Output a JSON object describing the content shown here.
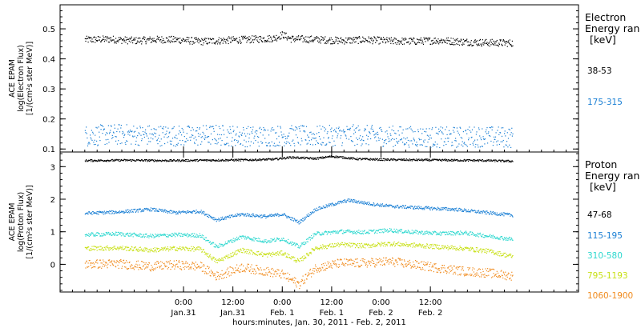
{
  "chart_data": [
    {
      "type": "scatter",
      "panel": "electron",
      "ylabel_lines": [
        "ACE EPAM",
        "log(Electron Flux)",
        "[1/(cm²s ster MeV)]"
      ],
      "ylim": [
        0.09,
        0.58
      ],
      "yticks": [
        0.1,
        0.2,
        0.3,
        0.4,
        0.5
      ],
      "ytick_labels": [
        "0.1",
        "0.2",
        "0.3",
        "0.4",
        "0.5"
      ],
      "legend_title": [
        "Electron",
        "Energy ran",
        "[keV]"
      ],
      "series": [
        {
          "name": "38-53",
          "color": "#000000",
          "points": [
            [
              0,
              0.465
            ],
            [
              6,
              0.467
            ],
            [
              12,
              0.462
            ],
            [
              18,
              0.466
            ],
            [
              24,
              0.464
            ],
            [
              28,
              0.459
            ],
            [
              34,
              0.463
            ],
            [
              40,
              0.466
            ],
            [
              46,
              0.47
            ],
            [
              48,
              0.482
            ],
            [
              50,
              0.468
            ],
            [
              56,
              0.466
            ],
            [
              62,
              0.462
            ],
            [
              68,
              0.465
            ],
            [
              74,
              0.461
            ],
            [
              80,
              0.46
            ],
            [
              86,
              0.463
            ],
            [
              92,
              0.458
            ],
            [
              98,
              0.455
            ],
            [
              104,
              0.454
            ]
          ],
          "jitter": 0.012
        },
        {
          "name": "175-315",
          "color": "#1a7fd4",
          "points": [
            [
              0,
              0.145
            ],
            [
              8,
              0.15
            ],
            [
              16,
              0.147
            ],
            [
              24,
              0.145
            ],
            [
              32,
              0.148
            ],
            [
              40,
              0.143
            ],
            [
              48,
              0.146
            ],
            [
              56,
              0.144
            ],
            [
              64,
              0.148
            ],
            [
              72,
              0.145
            ],
            [
              80,
              0.142
            ],
            [
              88,
              0.14
            ],
            [
              96,
              0.143
            ],
            [
              104,
              0.14
            ]
          ],
          "jitter": 0.035
        }
      ]
    },
    {
      "type": "scatter",
      "panel": "proton",
      "ylabel_lines": [
        "ACE EPAM",
        "log(Proton Flux)",
        "[1/(cm²s ster MeV)]"
      ],
      "ylim": [
        -0.85,
        3.45
      ],
      "yticks": [
        0,
        1,
        2,
        3
      ],
      "ytick_labels": [
        "0",
        "1",
        "2",
        "3"
      ],
      "legend_title": [
        "Proton",
        "Energy ran",
        "[keV]"
      ],
      "series": [
        {
          "name": "47-68",
          "color": "#000000",
          "points": [
            [
              0,
              3.2
            ],
            [
              10,
              3.21
            ],
            [
              20,
              3.2
            ],
            [
              30,
              3.21
            ],
            [
              40,
              3.22
            ],
            [
              46,
              3.24
            ],
            [
              50,
              3.3
            ],
            [
              56,
              3.26
            ],
            [
              60,
              3.33
            ],
            [
              66,
              3.25
            ],
            [
              72,
              3.23
            ],
            [
              80,
              3.22
            ],
            [
              90,
              3.21
            ],
            [
              98,
              3.2
            ],
            [
              104,
              3.18
            ]
          ],
          "jitter": 0.03
        },
        {
          "name": "115-195",
          "color": "#1a7fd4",
          "points": [
            [
              0,
              1.58
            ],
            [
              8,
              1.62
            ],
            [
              16,
              1.7
            ],
            [
              22,
              1.6
            ],
            [
              28,
              1.64
            ],
            [
              32,
              1.38
            ],
            [
              38,
              1.55
            ],
            [
              44,
              1.48
            ],
            [
              48,
              1.55
            ],
            [
              52,
              1.3
            ],
            [
              56,
              1.7
            ],
            [
              60,
              1.85
            ],
            [
              64,
              1.98
            ],
            [
              70,
              1.86
            ],
            [
              74,
              1.8
            ],
            [
              80,
              1.76
            ],
            [
              86,
              1.72
            ],
            [
              90,
              1.7
            ],
            [
              96,
              1.62
            ],
            [
              104,
              1.52
            ]
          ],
          "jitter": 0.05
        },
        {
          "name": "310-580",
          "color": "#2ed8cf",
          "points": [
            [
              0,
              0.92
            ],
            [
              8,
              0.95
            ],
            [
              16,
              0.88
            ],
            [
              22,
              0.92
            ],
            [
              28,
              0.9
            ],
            [
              32,
              0.55
            ],
            [
              38,
              0.86
            ],
            [
              44,
              0.72
            ],
            [
              48,
              0.8
            ],
            [
              52,
              0.55
            ],
            [
              56,
              0.95
            ],
            [
              62,
              1.02
            ],
            [
              68,
              1.0
            ],
            [
              74,
              1.06
            ],
            [
              80,
              1.0
            ],
            [
              86,
              0.96
            ],
            [
              92,
              0.98
            ],
            [
              98,
              0.88
            ],
            [
              104,
              0.78
            ]
          ],
          "jitter": 0.06
        },
        {
          "name": "795-1193",
          "color": "#c8e016",
          "points": [
            [
              0,
              0.5
            ],
            [
              8,
              0.52
            ],
            [
              16,
              0.45
            ],
            [
              22,
              0.5
            ],
            [
              28,
              0.48
            ],
            [
              32,
              0.1
            ],
            [
              38,
              0.45
            ],
            [
              44,
              0.3
            ],
            [
              48,
              0.36
            ],
            [
              52,
              0.1
            ],
            [
              56,
              0.52
            ],
            [
              62,
              0.62
            ],
            [
              68,
              0.58
            ],
            [
              74,
              0.65
            ],
            [
              80,
              0.6
            ],
            [
              86,
              0.55
            ],
            [
              92,
              0.5
            ],
            [
              98,
              0.42
            ],
            [
              104,
              0.25
            ]
          ],
          "jitter": 0.07
        },
        {
          "name": "1060-1900",
          "color": "#f08a1c",
          "points": [
            [
              0,
              0.02
            ],
            [
              8,
              0.03
            ],
            [
              16,
              -0.05
            ],
            [
              22,
              0.0
            ],
            [
              28,
              -0.05
            ],
            [
              32,
              -0.35
            ],
            [
              38,
              -0.08
            ],
            [
              44,
              -0.2
            ],
            [
              48,
              -0.3
            ],
            [
              52,
              -0.6
            ],
            [
              56,
              -0.1
            ],
            [
              62,
              0.05
            ],
            [
              68,
              0.05
            ],
            [
              74,
              0.1
            ],
            [
              80,
              0.0
            ],
            [
              86,
              -0.1
            ],
            [
              92,
              -0.2
            ],
            [
              98,
              -0.25
            ],
            [
              104,
              -0.35
            ]
          ],
          "jitter": 0.14
        }
      ]
    }
  ],
  "x_axis": {
    "title": "hours:minutes, Jan. 30, 2011 - Feb.  2, 2011",
    "range_hours": [
      -6,
      120
    ],
    "ticks": [
      {
        "hours": 24,
        "time": "0:00",
        "date": "Jan.31"
      },
      {
        "hours": 36,
        "time": "12:00",
        "date": "Jan.31"
      },
      {
        "hours": 48,
        "time": "0:00",
        "date": "Feb.  1"
      },
      {
        "hours": 60,
        "time": "12:00",
        "date": "Feb.  1"
      },
      {
        "hours": 72,
        "time": "0:00",
        "date": "Feb.  2"
      },
      {
        "hours": 84,
        "time": "12:00",
        "date": "Feb.  2"
      }
    ],
    "data_start_hours": 0,
    "data_end_hours": 104
  }
}
